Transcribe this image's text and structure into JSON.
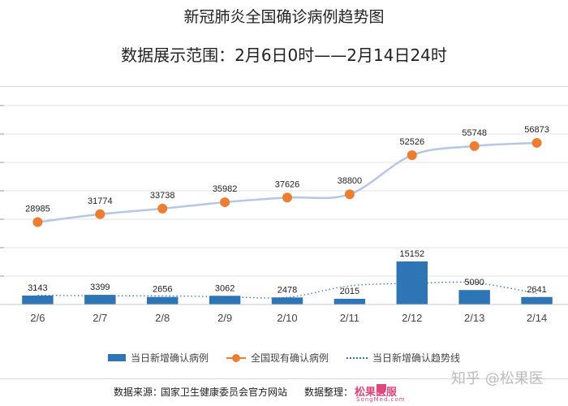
{
  "title": "新冠肺炎全国确诊病例趋势图",
  "subtitle": "数据展示范围：2月6日0时——2月14日24时",
  "chart_data": {
    "type": "bar",
    "categories": [
      "2/6",
      "2/7",
      "2/8",
      "2/9",
      "2/10",
      "2/11",
      "2/12",
      "2/13",
      "2/14"
    ],
    "series": [
      {
        "name": "当日新增确认病例",
        "type": "bar",
        "color": "#2e75b6",
        "values": [
          3143,
          3399,
          2656,
          3062,
          2478,
          2015,
          15152,
          5090,
          2641
        ]
      },
      {
        "name": "全国现有确认病例",
        "type": "line",
        "color": "#ed7d31",
        "values": [
          28985,
          31774,
          33738,
          35982,
          37626,
          38800,
          52526,
          55748,
          56873
        ]
      },
      {
        "name": "当日新增确认趋势线",
        "type": "trendline",
        "style": "dotted",
        "color": "#2e75b6"
      }
    ],
    "ylim": [
      0,
      70000
    ],
    "grid": true,
    "legend": "bottom"
  },
  "footer": {
    "source_label": "数据来源：",
    "source_value": "国家卫生健康委员会官方网站",
    "organizer_label": "数据整理：",
    "organizer_logo_cn": "松果医服",
    "organizer_logo_en": "SongMed.com"
  },
  "watermark": "知乎 @松果医"
}
